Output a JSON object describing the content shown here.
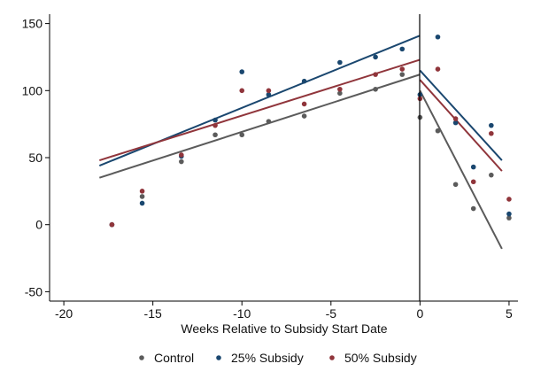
{
  "chart_data": {
    "type": "scatter",
    "xlabel": "Weeks Relative to Subsidy Start Date",
    "ylabel": "",
    "xlim": [
      -20.8,
      5.5
    ],
    "ylim": [
      -57,
      157
    ],
    "xticks": [
      -20,
      -15,
      -10,
      -5,
      0,
      5
    ],
    "yticks": [
      -50,
      0,
      50,
      100,
      150
    ],
    "grid": false,
    "legend": "bottom",
    "reference_line_x": 0,
    "series": [
      {
        "name": "Control",
        "color": "#5b5b5b",
        "points": [
          {
            "x": -17.3,
            "y": 0
          },
          {
            "x": -15.6,
            "y": 21
          },
          {
            "x": -13.4,
            "y": 47
          },
          {
            "x": -11.5,
            "y": 67
          },
          {
            "x": -10,
            "y": 67
          },
          {
            "x": -8.5,
            "y": 77
          },
          {
            "x": -6.5,
            "y": 81
          },
          {
            "x": -4.5,
            "y": 98
          },
          {
            "x": -2.5,
            "y": 101
          },
          {
            "x": -1,
            "y": 112
          },
          {
            "x": 0,
            "y": 80
          },
          {
            "x": 1,
            "y": 70
          },
          {
            "x": 2,
            "y": 30
          },
          {
            "x": 3,
            "y": 12
          },
          {
            "x": 4,
            "y": 37
          },
          {
            "x": 5,
            "y": 5
          }
        ],
        "fit_pre": [
          [
            -18,
            35
          ],
          [
            0,
            112
          ]
        ],
        "fit_post": [
          [
            0,
            100
          ],
          [
            4.6,
            -18
          ]
        ]
      },
      {
        "name": "25% Subsidy",
        "color": "#1a476f",
        "points": [
          {
            "x": -17.3,
            "y": 0
          },
          {
            "x": -15.6,
            "y": 16
          },
          {
            "x": -13.4,
            "y": 51
          },
          {
            "x": -11.5,
            "y": 78
          },
          {
            "x": -10,
            "y": 114
          },
          {
            "x": -8.5,
            "y": 97
          },
          {
            "x": -6.5,
            "y": 107
          },
          {
            "x": -4.5,
            "y": 121
          },
          {
            "x": -2.5,
            "y": 125
          },
          {
            "x": -1,
            "y": 131
          },
          {
            "x": 0,
            "y": 97
          },
          {
            "x": 1,
            "y": 140
          },
          {
            "x": 2,
            "y": 76
          },
          {
            "x": 3,
            "y": 43
          },
          {
            "x": 4,
            "y": 74
          },
          {
            "x": 5,
            "y": 8
          }
        ],
        "fit_pre": [
          [
            -18,
            44
          ],
          [
            0,
            141
          ]
        ],
        "fit_post": [
          [
            0,
            115
          ],
          [
            4.6,
            48
          ]
        ]
      },
      {
        "name": "50% Subsidy",
        "color": "#90353b",
        "points": [
          {
            "x": -17.3,
            "y": 0
          },
          {
            "x": -15.6,
            "y": 25
          },
          {
            "x": -13.4,
            "y": 52
          },
          {
            "x": -11.5,
            "y": 74
          },
          {
            "x": -10,
            "y": 100
          },
          {
            "x": -8.5,
            "y": 100
          },
          {
            "x": -6.5,
            "y": 90
          },
          {
            "x": -4.5,
            "y": 101
          },
          {
            "x": -2.5,
            "y": 112
          },
          {
            "x": -1,
            "y": 116
          },
          {
            "x": 0,
            "y": 94
          },
          {
            "x": 1,
            "y": 116
          },
          {
            "x": 2,
            "y": 79
          },
          {
            "x": 3,
            "y": 32
          },
          {
            "x": 4,
            "y": 68
          },
          {
            "x": 5,
            "y": 19
          }
        ],
        "fit_pre": [
          [
            -18,
            48
          ],
          [
            0,
            123
          ]
        ],
        "fit_post": [
          [
            0,
            108
          ],
          [
            4.6,
            40
          ]
        ]
      }
    ]
  }
}
